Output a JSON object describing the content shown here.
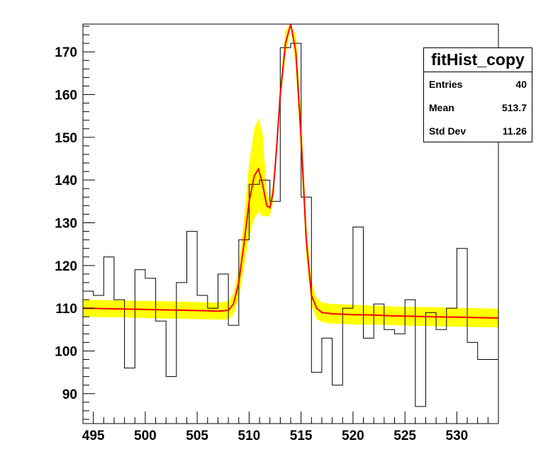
{
  "colors": {
    "band": "#ffff00",
    "fit": "#ff0000",
    "hist": "#000000",
    "frame": "#000000"
  },
  "stats": {
    "title": "fitHist_copy",
    "rows": [
      {
        "label": "Entries",
        "value": "40"
      },
      {
        "label": "Mean",
        "value": "513.7"
      },
      {
        "label": "Std Dev",
        "value": "11.26"
      }
    ]
  },
  "chart_data": {
    "type": "histogram",
    "title": "",
    "xlabel": "",
    "ylabel": "",
    "xlim": [
      494.0,
      534.0
    ],
    "ylim": [
      83.0,
      176.5
    ],
    "grid": false,
    "xticks": [
      495,
      500,
      505,
      510,
      515,
      520,
      525,
      530
    ],
    "yticks": [
      90,
      100,
      110,
      120,
      130,
      140,
      150,
      160,
      170
    ],
    "bin_width": 1,
    "bin_edges_start": 494,
    "histogram_values": [
      114,
      113,
      122,
      112,
      96,
      119,
      117,
      107,
      94,
      116,
      128,
      113,
      110,
      118,
      106,
      126,
      139,
      140,
      135,
      171,
      172,
      136,
      95,
      103,
      92,
      110,
      129,
      103,
      111,
      105,
      104,
      112,
      87,
      109,
      105,
      110,
      124,
      102,
      98,
      98
    ],
    "fit": {
      "x": [
        494,
        496,
        498,
        500,
        502,
        504,
        506,
        507,
        508,
        508.5,
        509,
        509.5,
        510,
        510.5,
        510.9,
        511.3,
        511.7,
        512,
        512.3,
        512.6,
        513,
        513.5,
        514,
        514.5,
        515,
        515.5,
        516,
        516.5,
        517,
        518,
        520,
        522,
        524,
        526,
        528,
        530,
        532,
        534
      ],
      "y": [
        110,
        109.9,
        109.8,
        109.7,
        109.6,
        109.5,
        109.4,
        109.3,
        109.5,
        111,
        116,
        125,
        135,
        141,
        142.6,
        139,
        134,
        133.5,
        137,
        146,
        160,
        172,
        178,
        170,
        150,
        126,
        113,
        110,
        109,
        108.7,
        108.5,
        108.4,
        108.2,
        108.1,
        108,
        107.9,
        107.8,
        107.7
      ],
      "band_upper": [
        112,
        111.9,
        111.8,
        111.7,
        111.6,
        111.5,
        111.4,
        111.3,
        111.6,
        113.5,
        119.5,
        131,
        144,
        152,
        154.5,
        151,
        137,
        135.5,
        139,
        148,
        162,
        175,
        180,
        174,
        155,
        130,
        116,
        112.5,
        111.3,
        111,
        110.8,
        110.6,
        110.4,
        110.3,
        110.2,
        110.1,
        110,
        109.9
      ],
      "band_lower": [
        108,
        107.9,
        107.8,
        107.7,
        107.6,
        107.5,
        107.4,
        107.3,
        107.4,
        108.5,
        112.5,
        119.5,
        127,
        131,
        132.5,
        131.5,
        131.5,
        131.5,
        135,
        144,
        158,
        169,
        176,
        166,
        145,
        122,
        110.5,
        107.5,
        106.7,
        106.4,
        106.2,
        106.2,
        106,
        105.9,
        105.8,
        105.7,
        105.6,
        105.5
      ]
    }
  }
}
